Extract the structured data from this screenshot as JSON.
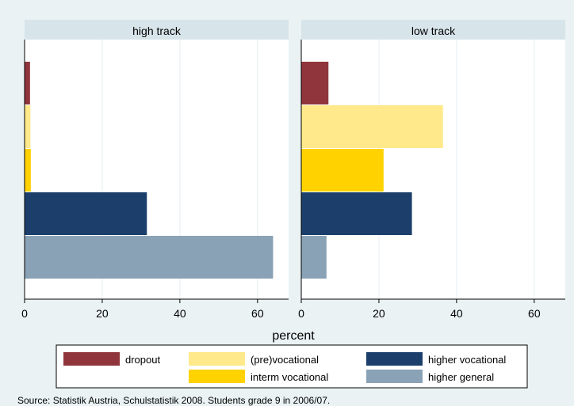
{
  "chart_data": {
    "type": "bar",
    "orientation": "horizontal",
    "panels": [
      {
        "title": "high track",
        "values": {
          "dropout": 1.4,
          "(pre)vocational": 1.5,
          "interm vocational": 1.6,
          "higher vocational": 31.5,
          "higher general": 64.0
        }
      },
      {
        "title": "low track",
        "values": {
          "dropout": 7.0,
          "(pre)vocational": 36.5,
          "interm vocational": 21.2,
          "higher vocational": 28.5,
          "higher general": 6.5
        }
      }
    ],
    "categories": [
      "dropout",
      "(pre)vocational",
      "interm vocational",
      "higher vocational",
      "higher general"
    ],
    "colors": {
      "dropout": "#90353b",
      "(pre)vocational": "#ffe98a",
      "interm vocational": "#ffd200",
      "higher vocational": "#1b3f6a",
      "higher general": "#8aa2b6"
    },
    "xlabel": "percent",
    "xlim": [
      0,
      68
    ],
    "xticks": [
      0,
      20,
      40,
      60
    ],
    "grid": true,
    "legend": {
      "position": "bottom",
      "entries": [
        "dropout",
        "(pre)vocational",
        "higher vocational",
        "interm vocational",
        "higher general"
      ]
    },
    "note": "Source: Statistik Austria, Schulstatistik 2008. Students grade 9 in 2006/07."
  }
}
